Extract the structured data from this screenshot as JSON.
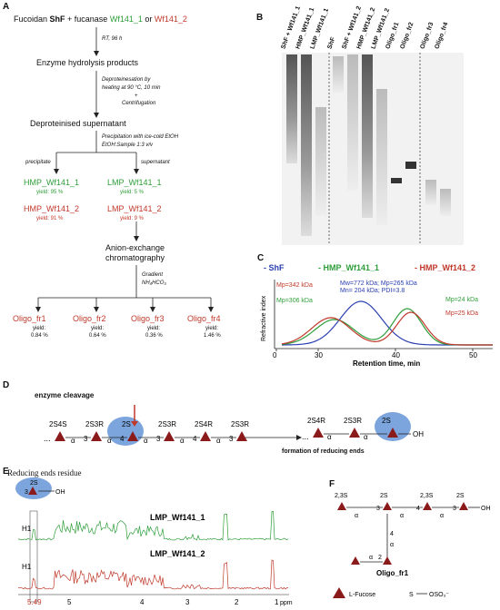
{
  "panelA": {
    "label": "A",
    "title_prefix": "Fucoidan ",
    "title_shf": "ShF",
    "title_mid": " + fucanase ",
    "enzyme1": "Wf141_1",
    "title_or": " or ",
    "enzyme2": "Wf141_2",
    "step1": "RT, 96 h",
    "box1": "Enzyme hydrolysis products",
    "step2a": "Deproteinesation by",
    "step2b": "heating at 90 °C, 10 min",
    "step2c": "+",
    "step2d": "Centrifugation",
    "box2": "Deproteinised supernatant",
    "step3a": "Precipitation with  ice-cold EtOH",
    "step3b": "EtOH:Sample 1:3 v/v",
    "precipitate": "precipitate",
    "supernatant": "supernatant",
    "hmp1": "HMP_Wf141_1",
    "hmp1_yield": "yield: 95 %",
    "hmp2": "HMP_Wf141_2",
    "hmp2_yield": "yield: 91 %",
    "lmp1": "LMP_Wf141_1",
    "lmp1_yield": "yield: 5 %",
    "lmp2": "LMP_Wf141_2",
    "lmp2_yield": "yield: 9 %",
    "aex1": "Anion-exchange",
    "aex2": "chromatography",
    "gradient": "Gradient",
    "buffer": "NH₄HCO₃",
    "fractions": [
      {
        "name": "Oligo_fr1",
        "yield_label": "yield:",
        "yield": "0.84 %"
      },
      {
        "name": "Oligo_fr2",
        "yield_label": "yield:",
        "yield": "0.64 %"
      },
      {
        "name": "Oligo_fr3",
        "yield_label": "yield:",
        "yield": "0.36 %"
      },
      {
        "name": "Oligo_fr4",
        "yield_label": "yield:",
        "yield": "1.46 %"
      }
    ]
  },
  "panelB": {
    "label": "B",
    "lanes": [
      "ShF + Wf141_1",
      "HMP_Wf141_1",
      "LMP_Wf141_1",
      "ShF",
      "ShF + Wf141_2",
      "HMP_Wf141_2",
      "LMP_Wf141_2",
      "Oligo_fr1",
      "Oligo_fr2",
      "Oligo_fr3",
      "Oligo_fr4"
    ]
  },
  "panelC": {
    "label": "C",
    "legend_shf": "- ShF",
    "legend_hmp1": "- HMP_Wf141_1",
    "legend_hmp2": "- HMP_Wf141_2",
    "mw_line1": "Mw=772 kDa; Mp=265 kDa",
    "mw_line2": "Mn= 204 kDa; PDI=3.8",
    "mp342": "Mp=342 kDa",
    "mp306": "Mp=306 kDa",
    "mp24": "Mp=24 kDa",
    "mp25": "Mp=25 kDa",
    "ylabel": "Refractive index",
    "xlabel": "Retention time, min",
    "x_ticks": [
      "0",
      "30",
      "40",
      "50"
    ]
  },
  "panelD": {
    "label": "D",
    "enzyme_cleavage": "enzyme cleavage",
    "sub_left": [
      "2S4S",
      "2S3R",
      "2S",
      "2S3R",
      "2S4R",
      "2S3R"
    ],
    "sub_right": [
      "2S4R",
      "2S3R",
      "2S"
    ],
    "link3": "3",
    "link4": "4",
    "alpha": "α",
    "oh": "OH",
    "formation": "formation of reducing ends"
  },
  "panelE": {
    "label": "E",
    "title": "Reducing ends residue",
    "sub": "2S",
    "link": "3",
    "oh": "OH",
    "spec1": "LMP_Wf141_1",
    "spec2": "LMP_Wf141_2",
    "h1a": "H1",
    "h1b": "H1",
    "ppm_highlight": "5.49",
    "ppm_ticks": [
      "5",
      "4",
      "3",
      "2",
      "1"
    ],
    "ppm_unit": "ppm"
  },
  "panelF": {
    "label": "F",
    "subs": [
      "2,3S",
      "2S",
      "2,3S",
      "2S"
    ],
    "links": [
      "3",
      "4",
      "3"
    ],
    "branch_link": "4",
    "branch_link2": "2",
    "alpha": "α",
    "oh": "OH",
    "name": "Oligo_fr1",
    "legend_fucose": "L-Fucose",
    "legend_sulfate_s": "S",
    "legend_sulfate": "OSO₃⁻"
  },
  "colors": {
    "green": "#2e9e3a",
    "red": "#c0392b",
    "blue": "#2a3fb0",
    "fucose": "#8b1a1a",
    "ellipse": "#5b8fd6"
  }
}
